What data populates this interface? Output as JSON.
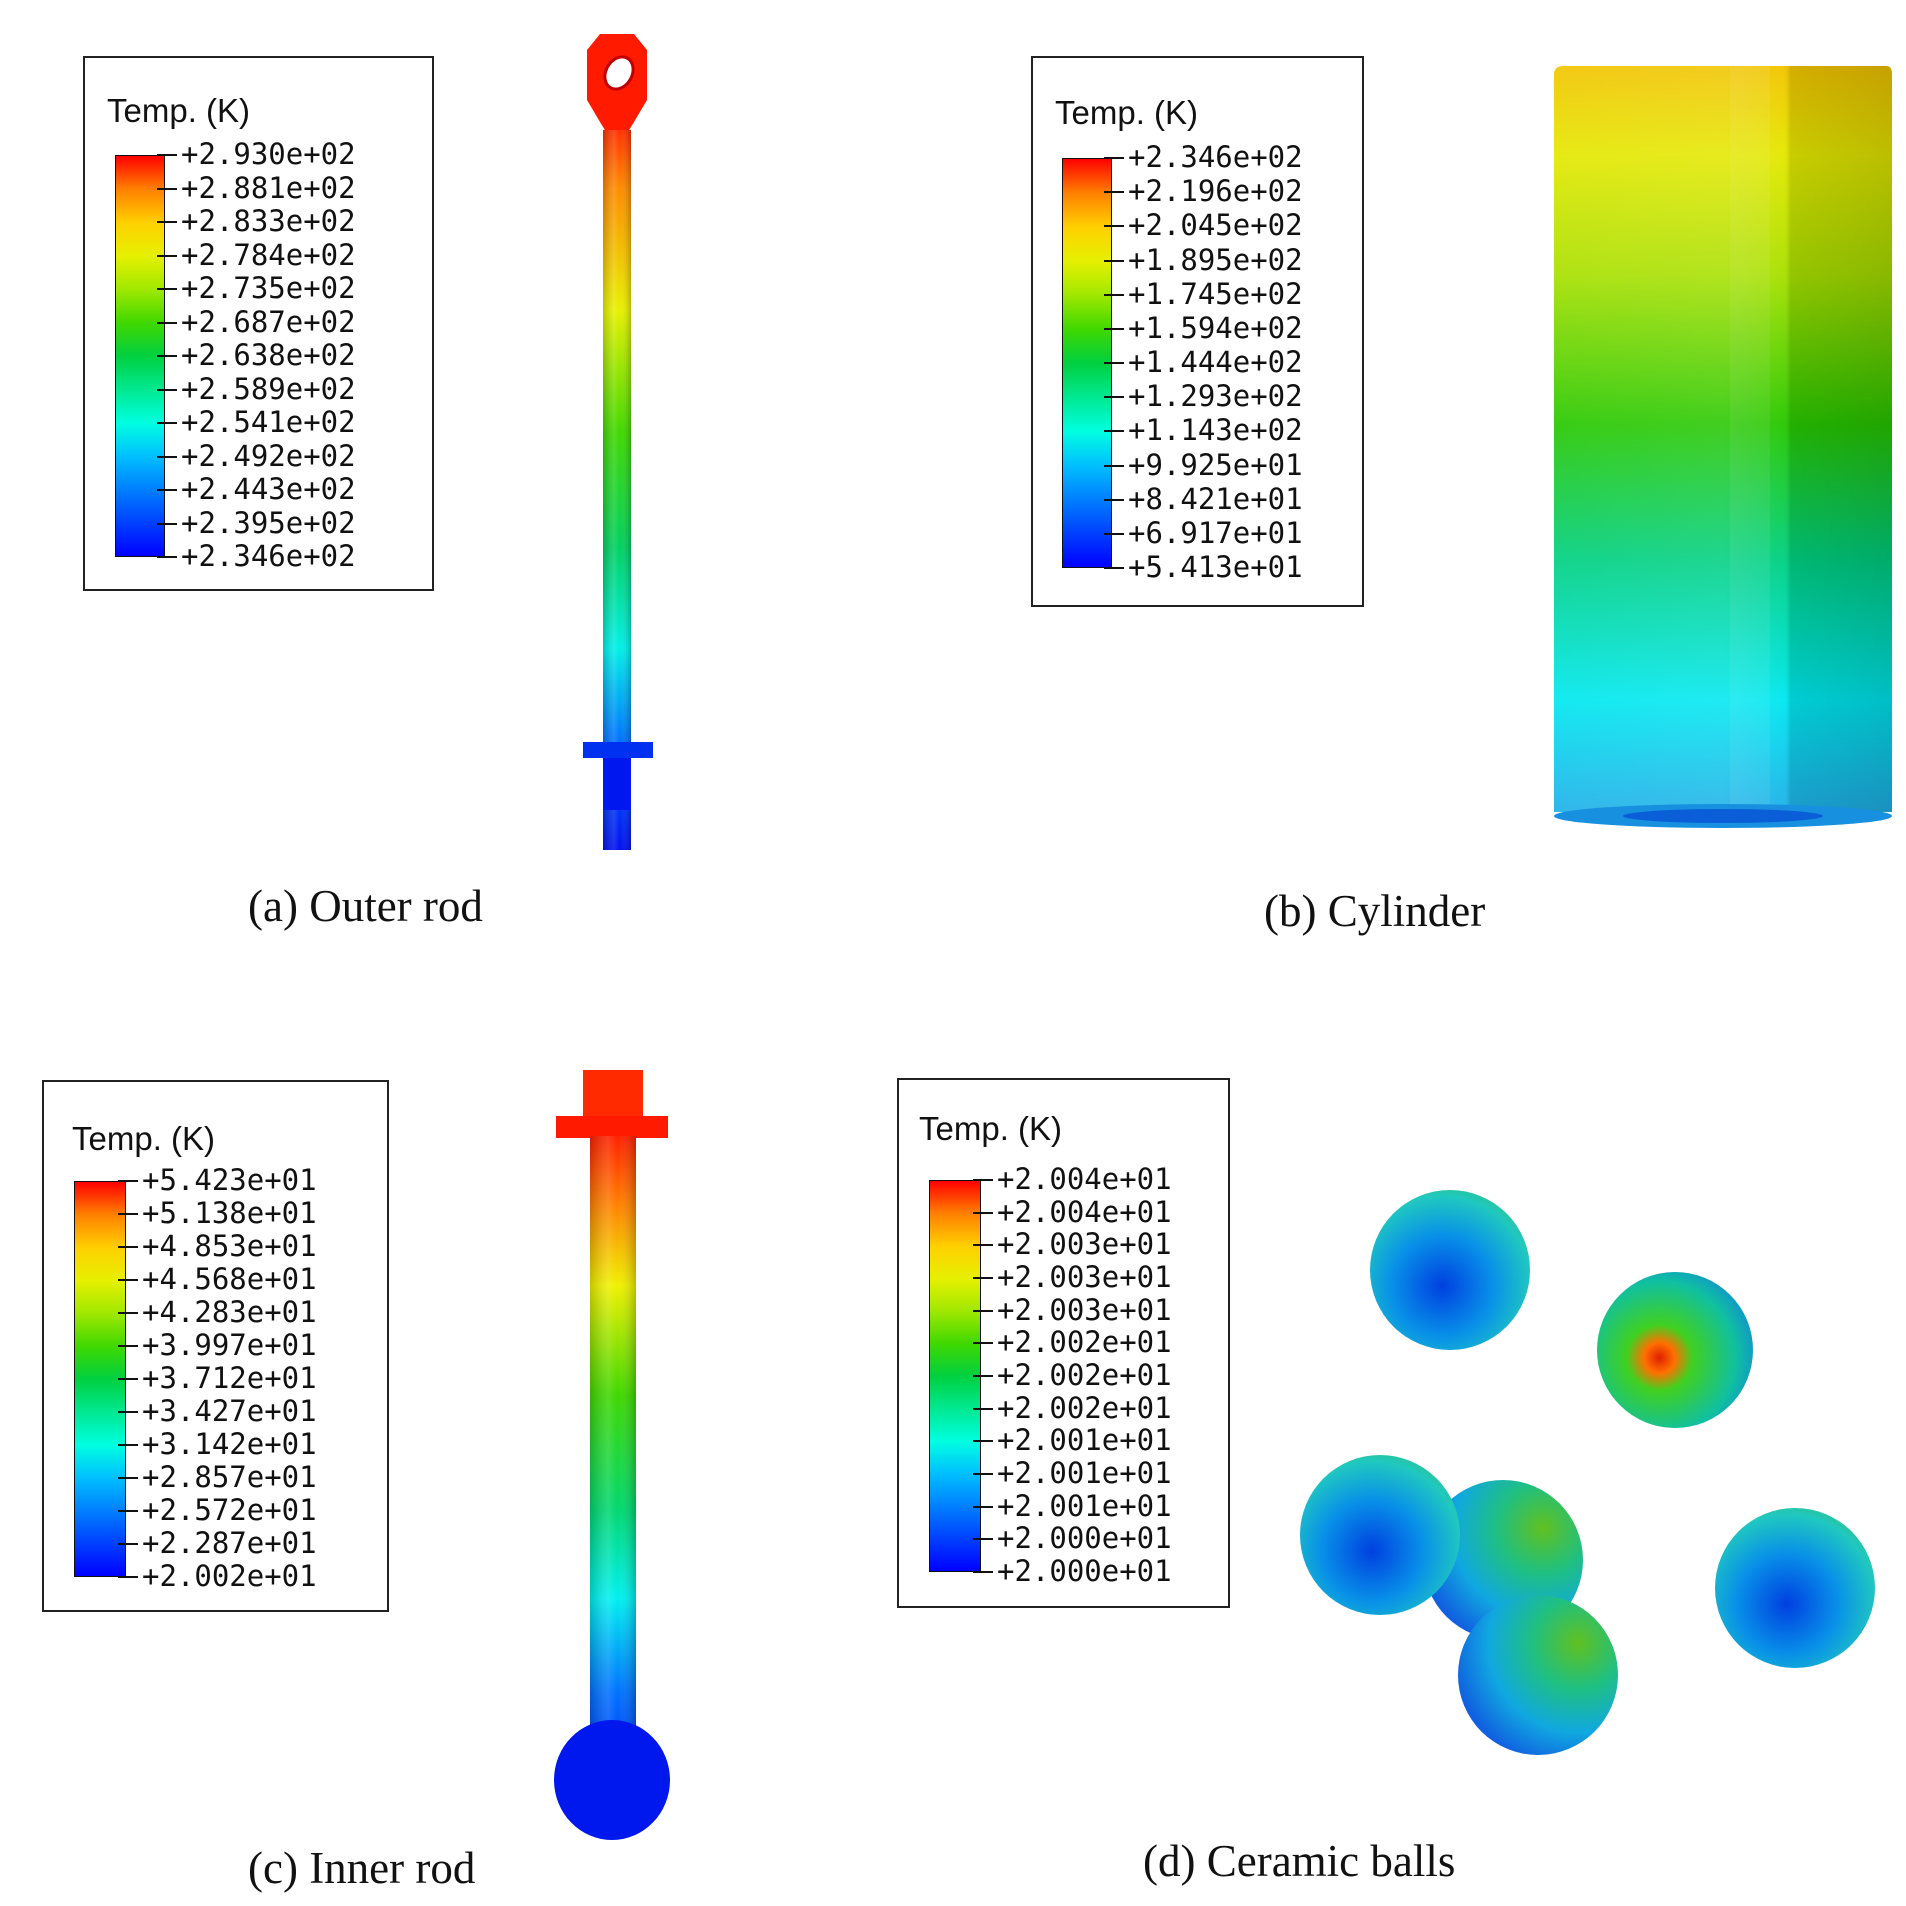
{
  "palette": [
    "#0000ff",
    "#0040ff",
    "#0080ff",
    "#00c0ff",
    "#00ffe0",
    "#00e890",
    "#00d040",
    "#40d800",
    "#a0e800",
    "#e6f000",
    "#ffd000",
    "#ff8000",
    "#ff0000"
  ],
  "panels": [
    {
      "id": "a",
      "caption": "(a) Outer rod",
      "legend": {
        "title": "Temp. (K)",
        "labels": [
          "+2.930e+02",
          "+2.881e+02",
          "+2.833e+02",
          "+2.784e+02",
          "+2.735e+02",
          "+2.687e+02",
          "+2.638e+02",
          "+2.589e+02",
          "+2.541e+02",
          "+2.492e+02",
          "+2.443e+02",
          "+2.395e+02",
          "+2.346e+02"
        ]
      },
      "object": "outer-rod"
    },
    {
      "id": "b",
      "caption": "(b) Cylinder",
      "legend": {
        "title": "Temp. (K)",
        "labels": [
          "+2.346e+02",
          "+2.196e+02",
          "+2.045e+02",
          "+1.895e+02",
          "+1.745e+02",
          "+1.594e+02",
          "+1.444e+02",
          "+1.293e+02",
          "+1.143e+02",
          "+9.925e+01",
          "+8.421e+01",
          "+6.917e+01",
          "+5.413e+01"
        ]
      },
      "object": "cylinder"
    },
    {
      "id": "c",
      "caption": "(c) Inner rod",
      "legend": {
        "title": "Temp. (K)",
        "labels": [
          "+5.423e+01",
          "+5.138e+01",
          "+4.853e+01",
          "+4.568e+01",
          "+4.283e+01",
          "+3.997e+01",
          "+3.712e+01",
          "+3.427e+01",
          "+3.142e+01",
          "+2.857e+01",
          "+2.572e+01",
          "+2.287e+01",
          "+2.002e+01"
        ]
      },
      "object": "inner-rod"
    },
    {
      "id": "d",
      "caption": "(d) Ceramic balls",
      "legend": {
        "title": "Temp. (K)",
        "labels": [
          "+2.004e+01",
          "+2.004e+01",
          "+2.003e+01",
          "+2.003e+01",
          "+2.003e+01",
          "+2.002e+01",
          "+2.002e+01",
          "+2.002e+01",
          "+2.001e+01",
          "+2.001e+01",
          "+2.001e+01",
          "+2.000e+01",
          "+2.000e+01"
        ]
      },
      "object": "ceramic-balls"
    }
  ]
}
